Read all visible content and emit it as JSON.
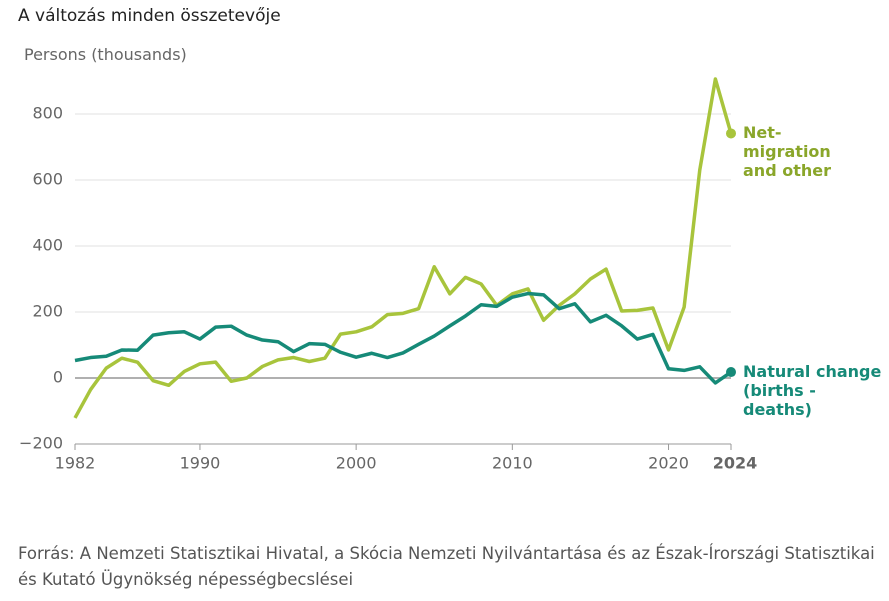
{
  "chart_data": {
    "type": "line",
    "title": "A változás minden összetevője",
    "y_label": "Persons (thousands)",
    "source": "Forrás: A Nemzeti Statisztikai Hivatal, a Skócia Nemzeti Nyilvántartása és az Észak-Írországi Statisztikai és Kutató Ügynökség népességbecslései",
    "x": [
      1982,
      1983,
      1984,
      1985,
      1986,
      1987,
      1988,
      1989,
      1990,
      1991,
      1992,
      1993,
      1994,
      1995,
      1996,
      1997,
      1998,
      1999,
      2000,
      2001,
      2002,
      2003,
      2004,
      2005,
      2006,
      2007,
      2008,
      2009,
      2010,
      2011,
      2012,
      2013,
      2014,
      2015,
      2016,
      2017,
      2018,
      2019,
      2020,
      2021,
      2022,
      2023,
      2024
    ],
    "series": [
      {
        "name": "Net-migration and other",
        "color": "#a8c43c",
        "label_color": "#8aa62a",
        "values": [
          -121,
          -35,
          30,
          60,
          48,
          -8,
          -22,
          20,
          43,
          48,
          -10,
          0,
          35,
          55,
          62,
          50,
          60,
          133,
          140,
          155,
          192,
          196,
          210,
          337,
          255,
          305,
          285,
          220,
          255,
          270,
          175,
          220,
          255,
          300,
          330,
          203,
          205,
          212,
          85,
          215,
          630,
          906,
          741
        ]
      },
      {
        "name": "Natural change (births - deaths)",
        "color": "#168a78",
        "label_color": "#168a78",
        "values": [
          53,
          62,
          66,
          85,
          84,
          130,
          137,
          140,
          118,
          154,
          157,
          130,
          115,
          110,
          80,
          104,
          102,
          78,
          63,
          75,
          62,
          76,
          102,
          127,
          158,
          188,
          222,
          217,
          245,
          256,
          252,
          210,
          225,
          170,
          190,
          158,
          118,
          132,
          28,
          23,
          34,
          -15,
          18
        ]
      }
    ],
    "xlim": [
      1982,
      2024
    ],
    "xticks": [
      1982,
      1990,
      2000,
      2010,
      2020,
      2024
    ],
    "ylim": [
      -200,
      900
    ],
    "yticks": [
      {
        "value": -200,
        "label": "−200"
      },
      0,
      200,
      400,
      600,
      800
    ],
    "grid": true
  }
}
